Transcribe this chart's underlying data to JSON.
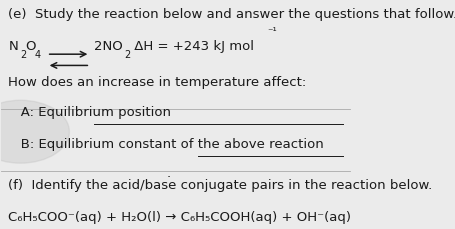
{
  "bg_color": "#ebebeb",
  "panel_color": "#ffffff",
  "line1": "(e)  Study the reaction below and answer the questions that follow.",
  "line3": "How does an increase in temperature affect:",
  "line4": "   A: Equilibrium position",
  "line5": "   B: Equilibrium constant of the above reaction",
  "line6_label": "(f)  Identify the acid/base conjugate pairs in the reaction below.",
  "line7": "C₆H₅COO⁻(aq) + H₂O(l) → C₆H₅COOH(aq) + OH⁻(aq)",
  "font_size": 9.5,
  "text_color": "#1a1a1a",
  "divider_color": "#aaaaaa"
}
